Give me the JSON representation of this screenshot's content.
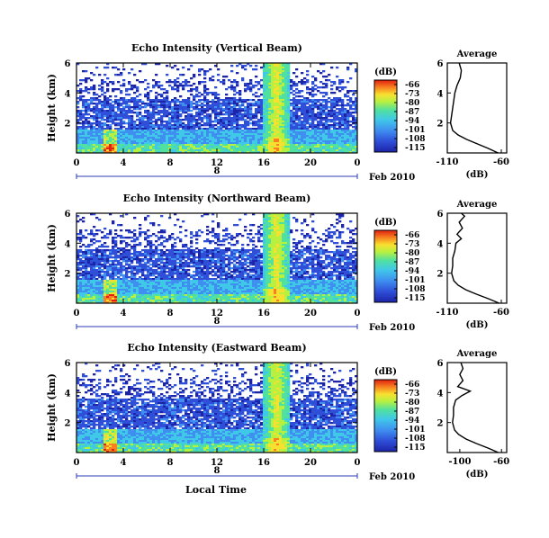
{
  "chart_data": {
    "type": "heatmap",
    "panels": [
      {
        "title": "Echo Intensity (Vertical Beam)",
        "ylabel": "Height (km)",
        "yticks": [
          "6",
          "4",
          "2"
        ],
        "xticks": [
          "0",
          "4",
          "8",
          "12",
          "16",
          "20",
          "0"
        ],
        "date_label": "Feb 2010",
        "day_label": "8",
        "ylim": [
          0,
          6
        ],
        "xlim": [
          0,
          24
        ],
        "colorbar": {
          "unit": "(dB)",
          "ticks": [
            "-66",
            "-73",
            "-80",
            "-87",
            "-94",
            "-101",
            "-108",
            "-115"
          ],
          "range": [
            -115,
            -66
          ]
        },
        "profile": {
          "title": "Average",
          "yticks": [
            "6",
            "4",
            "2"
          ],
          "xticks": [
            "-110",
            "-60"
          ],
          "xlabel": "(dB)",
          "xlim": [
            -110,
            -55
          ],
          "height": [
            0.0,
            0.3,
            0.6,
            0.9,
            1.2,
            1.5,
            2.0,
            2.5,
            3.0,
            3.5,
            4.0,
            4.5,
            5.0,
            5.5,
            6.0
          ],
          "db": [
            -63,
            -72,
            -82,
            -92,
            -100,
            -105,
            -107,
            -106,
            -105,
            -104,
            -103,
            -101,
            -98,
            -97,
            -99
          ]
        }
      },
      {
        "title": "Echo Intensity (Northward Beam)",
        "ylabel": "Height (km)",
        "yticks": [
          "6",
          "4",
          "2"
        ],
        "xticks": [
          "0",
          "4",
          "8",
          "12",
          "16",
          "20",
          "0"
        ],
        "date_label": "Feb 2010",
        "day_label": "8",
        "ylim": [
          0,
          6
        ],
        "xlim": [
          0,
          24
        ],
        "colorbar": {
          "unit": "(dB)",
          "ticks": [
            "-66",
            "-73",
            "-80",
            "-87",
            "-94",
            "-101",
            "-108",
            "-115"
          ],
          "range": [
            -115,
            -66
          ]
        },
        "profile": {
          "title": "Average",
          "yticks": [
            "6",
            "4",
            "2"
          ],
          "xticks": [
            "-110",
            "-60"
          ],
          "xlabel": "(dB)",
          "xlim": [
            -110,
            -55
          ],
          "height": [
            0.0,
            0.3,
            0.6,
            0.9,
            1.2,
            1.5,
            2.0,
            2.5,
            3.0,
            3.5,
            4.0,
            4.3,
            4.6,
            5.0,
            5.4,
            5.8,
            6.0
          ],
          "db": [
            -62,
            -72,
            -83,
            -93,
            -100,
            -104,
            -106,
            -105,
            -105,
            -103,
            -102,
            -97,
            -101,
            -96,
            -99,
            -94,
            -97
          ]
        }
      },
      {
        "title": "Echo Intensity (Eastward Beam)",
        "ylabel": "Height (km)",
        "yticks": [
          "6",
          "4",
          "2"
        ],
        "xticks": [
          "0",
          "4",
          "8",
          "12",
          "16",
          "20",
          "0"
        ],
        "date_label": "Feb 2010",
        "day_label": "8",
        "ylim": [
          0,
          6
        ],
        "xlim": [
          0,
          24
        ],
        "colorbar": {
          "unit": "(dB)",
          "ticks": [
            "-66",
            "-73",
            "-80",
            "-87",
            "-94",
            "-101",
            "-108",
            "-115"
          ],
          "range": [
            -115,
            -66
          ]
        },
        "profile": {
          "title": "Average",
          "yticks": [
            "6",
            "4",
            "2"
          ],
          "xticks": [
            "-100",
            "-60"
          ],
          "xlabel": "(dB)",
          "xlim": [
            -112,
            -55
          ],
          "height": [
            0.0,
            0.3,
            0.6,
            0.9,
            1.2,
            1.5,
            2.0,
            2.5,
            3.0,
            3.5,
            3.8,
            4.1,
            4.4,
            4.8,
            5.2,
            5.6,
            6.0
          ],
          "db": [
            -63,
            -73,
            -84,
            -94,
            -101,
            -105,
            -107,
            -106,
            -106,
            -104,
            -98,
            -90,
            -102,
            -97,
            -100,
            -97,
            -99
          ]
        }
      }
    ],
    "xlabel": "Local Time"
  },
  "colors": {
    "scale": [
      "#1c24a8",
      "#2f4fd8",
      "#3f8ff0",
      "#40c8e8",
      "#50e0a0",
      "#b8f040",
      "#f8e030",
      "#f88020",
      "#e02010"
    ],
    "axis": "#000000",
    "day_axis": "#2b3bb5"
  }
}
